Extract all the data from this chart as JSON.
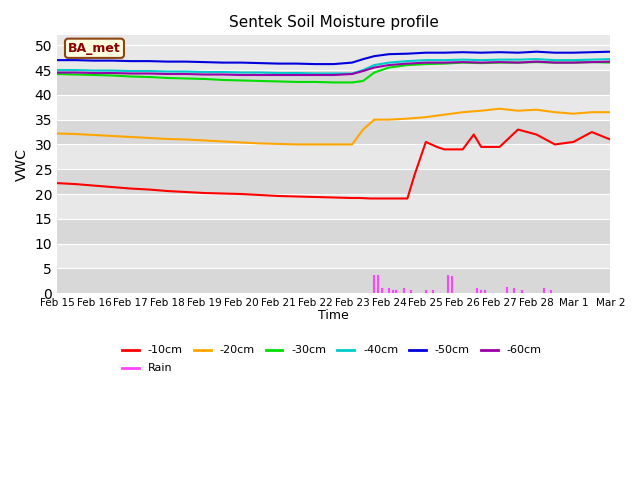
{
  "title": "Sentek Soil Moisture profile",
  "xlabel": "Time",
  "ylabel": "VWC",
  "legend_label": "BA_met",
  "ylim": [
    0,
    52
  ],
  "yticks": [
    0,
    5,
    10,
    15,
    20,
    25,
    30,
    35,
    40,
    45,
    50
  ],
  "xlabels": [
    "Feb 15",
    "Feb 16",
    "Feb 17",
    "Feb 18",
    "Feb 19",
    "Feb 20",
    "Feb 21",
    "Feb 22",
    "Feb 23",
    "Feb 24",
    "Feb 25",
    "Feb 26",
    "Feb 27",
    "Feb 28",
    "Mar 1",
    "Mar 2"
  ],
  "n_days": 16,
  "bg_color": "#e8e8e8",
  "fig_bg": "#ffffff",
  "grid_color": "#ffffff",
  "band_colors": [
    "#d8d8d8",
    "#e8e8e8"
  ],
  "series": {
    "10cm": {
      "color": "#ff0000",
      "label": "-10cm",
      "x": [
        0,
        0.5,
        1,
        1.5,
        2,
        2.5,
        3,
        3.5,
        4,
        4.5,
        5,
        5.5,
        6,
        6.5,
        7,
        7.5,
        8,
        8.2,
        8.5,
        8.7,
        9,
        9.5,
        9.7,
        10,
        10.3,
        10.5,
        11,
        11.3,
        11.5,
        12,
        12.5,
        13,
        13.5,
        14,
        14.5,
        15
      ],
      "y": [
        22.2,
        22.0,
        21.7,
        21.4,
        21.1,
        20.9,
        20.6,
        20.4,
        20.2,
        20.1,
        20.0,
        19.8,
        19.6,
        19.5,
        19.4,
        19.3,
        19.2,
        19.2,
        19.1,
        19.1,
        19.1,
        19.1,
        24.0,
        30.5,
        29.5,
        29.0,
        29.0,
        32.0,
        29.5,
        29.5,
        33.0,
        32.0,
        30.0,
        30.5,
        32.5,
        31.0
      ]
    },
    "20cm": {
      "color": "#ffa500",
      "label": "-20cm",
      "x": [
        0,
        0.5,
        1,
        1.5,
        2,
        2.5,
        3,
        3.5,
        4,
        4.5,
        5,
        5.5,
        6,
        6.5,
        7,
        7.5,
        8,
        8.3,
        8.6,
        9,
        9.5,
        10,
        10.5,
        11,
        11.5,
        12,
        12.5,
        13,
        13.5,
        14,
        14.5,
        15
      ],
      "y": [
        32.2,
        32.1,
        31.9,
        31.7,
        31.5,
        31.3,
        31.1,
        31.0,
        30.8,
        30.6,
        30.4,
        30.2,
        30.1,
        30.0,
        30.0,
        30.0,
        30.0,
        33.0,
        35.0,
        35.0,
        35.2,
        35.5,
        36.0,
        36.5,
        36.8,
        37.2,
        36.8,
        37.0,
        36.5,
        36.2,
        36.5,
        36.5
      ]
    },
    "30cm": {
      "color": "#00dd00",
      "label": "-30cm",
      "x": [
        0,
        0.5,
        1,
        1.5,
        2,
        2.5,
        3,
        3.5,
        4,
        4.5,
        5,
        5.5,
        6,
        6.5,
        7,
        7.5,
        8,
        8.3,
        8.6,
        9,
        9.5,
        10,
        10.5,
        11,
        11.5,
        12,
        12.5,
        13,
        13.5,
        14,
        14.5,
        15
      ],
      "y": [
        44.2,
        44.1,
        44.0,
        43.9,
        43.7,
        43.6,
        43.4,
        43.3,
        43.2,
        43.0,
        42.9,
        42.8,
        42.7,
        42.6,
        42.6,
        42.5,
        42.5,
        42.8,
        44.5,
        45.5,
        46.0,
        46.2,
        46.3,
        46.5,
        46.4,
        46.5,
        46.5,
        46.6,
        46.5,
        46.5,
        46.6,
        46.5
      ]
    },
    "40cm": {
      "color": "#00cccc",
      "label": "-40cm",
      "x": [
        0,
        0.5,
        1,
        1.5,
        2,
        2.5,
        3,
        3.5,
        4,
        4.5,
        5,
        5.5,
        6,
        6.5,
        7,
        7.5,
        8,
        8.3,
        8.6,
        9,
        9.5,
        10,
        10.5,
        11,
        11.5,
        12,
        12.5,
        13,
        13.5,
        14,
        14.5,
        15
      ],
      "y": [
        45.0,
        45.0,
        44.9,
        44.9,
        44.8,
        44.8,
        44.7,
        44.7,
        44.6,
        44.6,
        44.5,
        44.5,
        44.4,
        44.4,
        44.3,
        44.3,
        44.3,
        45.0,
        46.0,
        46.5,
        46.8,
        47.0,
        47.0,
        47.1,
        47.0,
        47.1,
        47.1,
        47.2,
        47.0,
        47.0,
        47.1,
        47.2
      ]
    },
    "50cm": {
      "color": "#0000dd",
      "label": "-50cm",
      "x": [
        0,
        0.5,
        1,
        1.5,
        2,
        2.5,
        3,
        3.5,
        4,
        4.5,
        5,
        5.5,
        6,
        6.5,
        7,
        7.5,
        8,
        8.3,
        8.6,
        9,
        9.5,
        10,
        10.5,
        11,
        11.5,
        12,
        12.5,
        13,
        13.5,
        14,
        14.5,
        15
      ],
      "y": [
        47.0,
        47.0,
        46.9,
        46.9,
        46.8,
        46.8,
        46.7,
        46.7,
        46.6,
        46.5,
        46.5,
        46.4,
        46.3,
        46.3,
        46.2,
        46.2,
        46.5,
        47.2,
        47.8,
        48.2,
        48.3,
        48.5,
        48.5,
        48.6,
        48.5,
        48.6,
        48.5,
        48.7,
        48.5,
        48.5,
        48.6,
        48.7
      ]
    },
    "60cm": {
      "color": "#9900aa",
      "label": "-60cm",
      "x": [
        0,
        0.5,
        1,
        1.5,
        2,
        2.5,
        3,
        3.5,
        4,
        4.5,
        5,
        5.5,
        6,
        6.5,
        7,
        7.5,
        8,
        8.3,
        8.6,
        9,
        9.5,
        10,
        10.5,
        11,
        11.5,
        12,
        12.5,
        13,
        13.5,
        14,
        14.5,
        15
      ],
      "y": [
        44.5,
        44.5,
        44.4,
        44.4,
        44.3,
        44.3,
        44.2,
        44.2,
        44.1,
        44.1,
        44.0,
        44.0,
        44.0,
        44.0,
        44.0,
        44.0,
        44.2,
        44.8,
        45.5,
        46.0,
        46.3,
        46.5,
        46.5,
        46.6,
        46.5,
        46.6,
        46.5,
        46.7,
        46.5,
        46.5,
        46.6,
        46.7
      ]
    },
    "rain": {
      "color": "#ff44ff",
      "label": "Rain",
      "x": [
        8.6,
        8.7,
        8.8,
        9.0,
        9.1,
        9.2,
        9.4,
        9.6,
        10.0,
        10.2,
        10.6,
        10.7,
        11.4,
        11.5,
        11.6,
        12.2,
        12.4,
        12.6,
        13.2,
        13.4
      ],
      "y": [
        3.5,
        3.5,
        0.8,
        0.8,
        0.5,
        0.5,
        0.9,
        0.5,
        0.5,
        0.4,
        3.5,
        3.2,
        0.9,
        0.5,
        0.4,
        1.0,
        0.8,
        0.5,
        0.8,
        0.5
      ]
    }
  }
}
